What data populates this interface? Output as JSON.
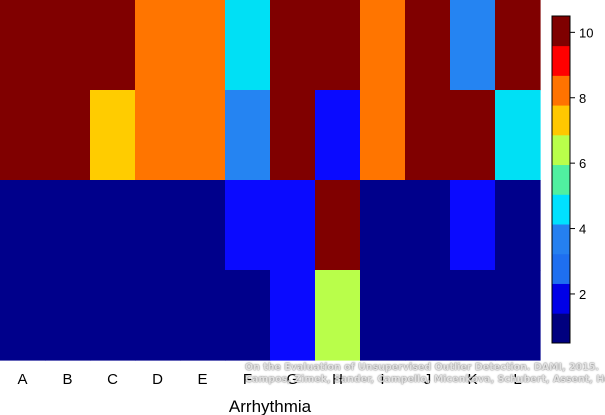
{
  "chart_data": {
    "type": "heatmap",
    "title": "",
    "xlabel": "Arrhythmia",
    "ylabel": "",
    "categories": [
      "A",
      "B",
      "C",
      "D",
      "E",
      "F",
      "G",
      "H",
      "I",
      "J",
      "K",
      "L"
    ],
    "rows_top_to_bottom": 4,
    "values": [
      [
        10,
        10,
        10,
        8,
        8,
        4,
        10,
        10,
        8,
        10,
        3,
        10
      ],
      [
        10,
        10,
        7,
        8,
        8,
        3,
        10,
        2,
        8,
        10,
        10,
        4
      ],
      [
        1,
        1,
        1,
        1,
        1,
        2,
        2,
        10,
        1,
        1,
        2,
        1
      ],
      [
        1,
        1,
        1,
        1,
        1,
        1,
        2,
        6,
        1,
        1,
        1,
        1
      ]
    ],
    "colorbar": {
      "range": [
        0.5,
        10.5
      ],
      "ticks": [
        2,
        4,
        6,
        8,
        10
      ],
      "colors": [
        "#00007f",
        "#0000e6",
        "#1e6ff0",
        "#2580f0",
        "#00e1ff",
        "#50f0a0",
        "#b9ff4a",
        "#ffc800",
        "#ff7300",
        "#ff0000",
        "#7f0000"
      ]
    },
    "color_map": {
      "1": "#00008b",
      "2": "#0a0aff",
      "3": "#2584f2",
      "4": "#00e0f5",
      "6": "#b9fe4a",
      "7": "#ffcc00",
      "8": "#ff7500",
      "10": "#800000"
    }
  },
  "credit": {
    "line1": "On the Evaluation of Unsupervised Outlier Detection. DAMI, 2015.",
    "line2": "Campos, Zimek, Sander, Campello, Micenkova, Schubert, Assent, Houle"
  }
}
